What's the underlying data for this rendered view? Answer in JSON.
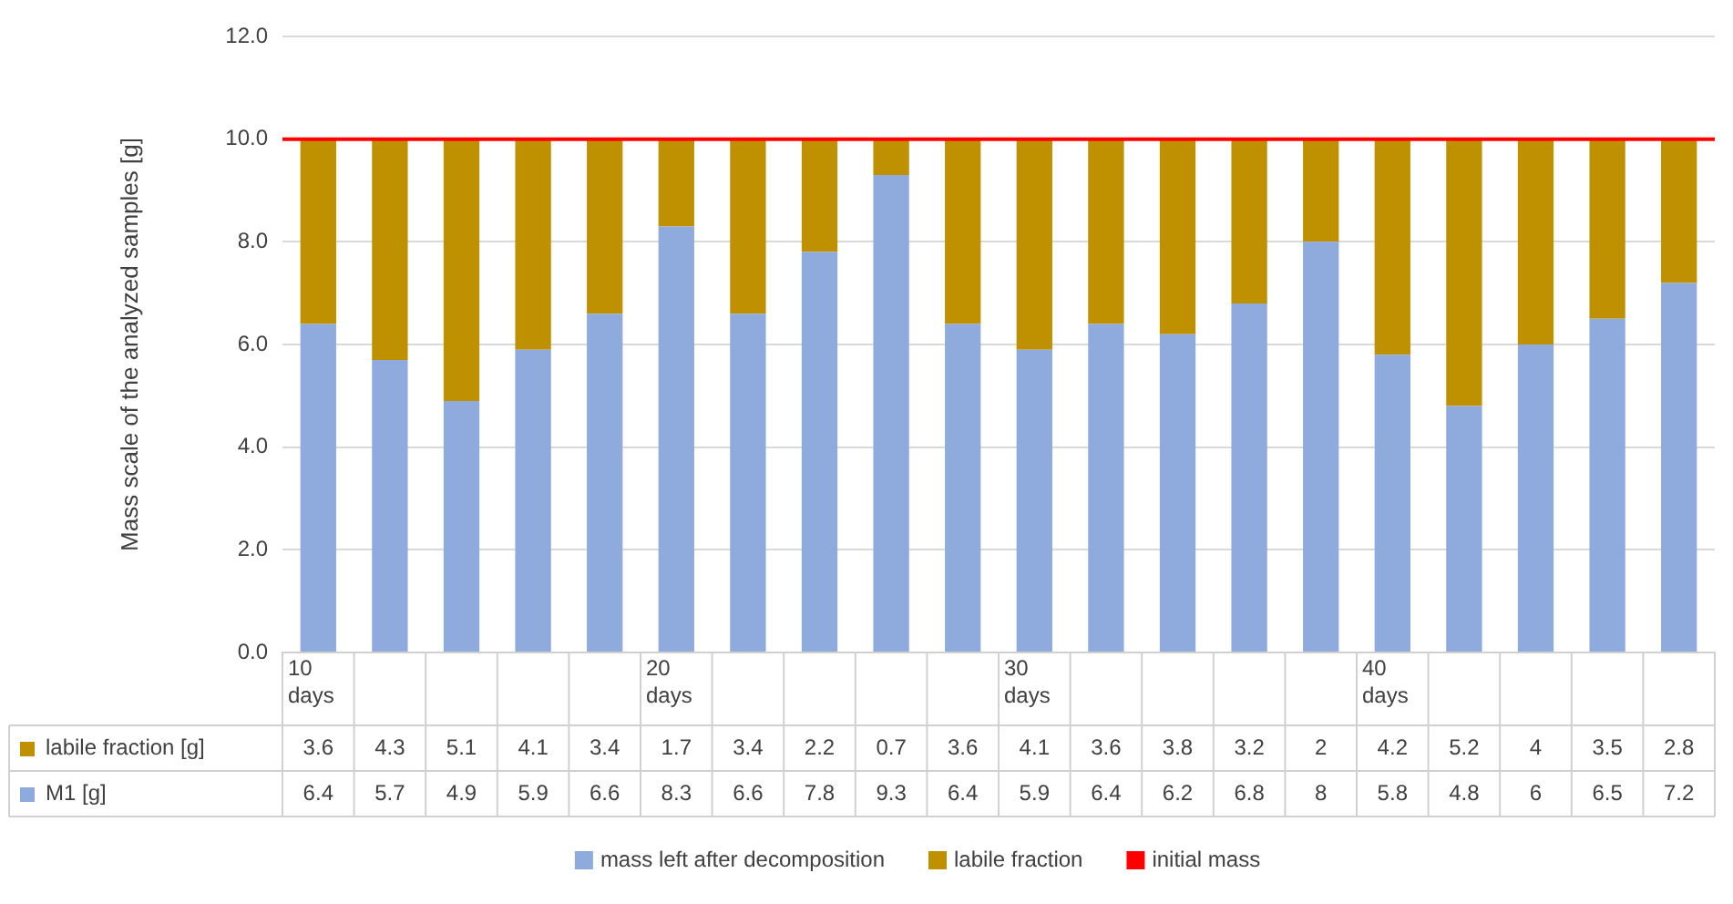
{
  "chart_data": {
    "type": "bar",
    "stacked": true,
    "ylabel": "Mass scale of the analyzed samples [g]",
    "categories": [
      "10 days",
      null,
      null,
      null,
      null,
      "20 days",
      null,
      null,
      null,
      null,
      "30 days",
      null,
      null,
      null,
      null,
      "40 days",
      null,
      null,
      null,
      null
    ],
    "series": [
      {
        "name": "mass left after decomposition",
        "color": "#8faadc",
        "values": [
          6.4,
          5.7,
          4.9,
          5.9,
          6.6,
          8.3,
          6.6,
          7.8,
          9.3,
          6.4,
          5.9,
          6.4,
          6.2,
          6.8,
          8,
          5.8,
          4.8,
          6,
          6.5,
          7.2
        ]
      },
      {
        "name": "labile fraction",
        "color": "#bf9000",
        "values": [
          3.6,
          4.3,
          5.1,
          4.1,
          3.4,
          1.7,
          3.4,
          2.2,
          0.7,
          3.6,
          4.1,
          3.6,
          3.8,
          3.2,
          2,
          4.2,
          5.2,
          4,
          3.5,
          2.8
        ]
      }
    ],
    "ylim": [
      0,
      12
    ],
    "yticks": [
      {
        "value": 0,
        "label": "0.0"
      },
      {
        "value": 2,
        "label": "2.0"
      },
      {
        "value": 4,
        "label": "4.0"
      },
      {
        "value": 6,
        "label": "6.0"
      },
      {
        "value": 8,
        "label": "8.0"
      },
      {
        "value": 10,
        "label": "10.0"
      },
      {
        "value": 12,
        "label": "12.0"
      }
    ],
    "grid": "y",
    "legend": "bottom",
    "data_labels": true,
    "ref_lines": [
      {
        "axis": "y",
        "value": 10,
        "label": "initial mass",
        "color": "#ff0000"
      }
    ],
    "annotations": [
      "labile fraction [g]",
      "M1 [g]"
    ]
  }
}
